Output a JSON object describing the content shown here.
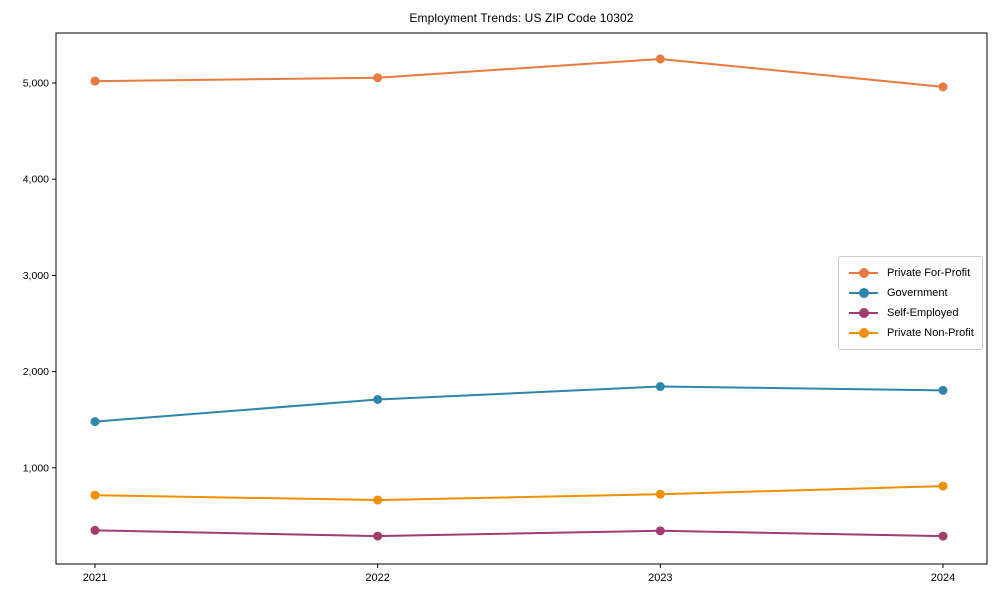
{
  "chart_data": {
    "type": "line",
    "title": "Employment Trends: US ZIP Code 10302",
    "categories": [
      "2021",
      "2022",
      "2023",
      "2024"
    ],
    "series": [
      {
        "name": "Private For-Profit",
        "color": "#e87a3e",
        "values": [
          5020,
          5055,
          5250,
          4960
        ]
      },
      {
        "name": "Government",
        "color": "#2e86ab",
        "values": [
          1480,
          1710,
          1845,
          1805
        ]
      },
      {
        "name": "Self-Employed",
        "color": "#a23b72",
        "values": [
          350,
          290,
          345,
          290
        ]
      },
      {
        "name": "Private Non-Profit",
        "color": "#f18f01",
        "values": [
          715,
          665,
          725,
          810
        ]
      }
    ],
    "xlabel": "",
    "ylabel": "",
    "ylim": [
      0,
      5520
    ],
    "yticks": [
      1000,
      2000,
      3000,
      4000,
      5000
    ],
    "ytick_labels": [
      "1,000",
      "2,000",
      "3,000",
      "4,000",
      "5,000"
    ],
    "grid": false,
    "legend_position": "center-right",
    "marker": "circle",
    "line_width": 2,
    "marker_radius": 4.5,
    "background": "#ffffff",
    "spine_color": "#000000"
  }
}
